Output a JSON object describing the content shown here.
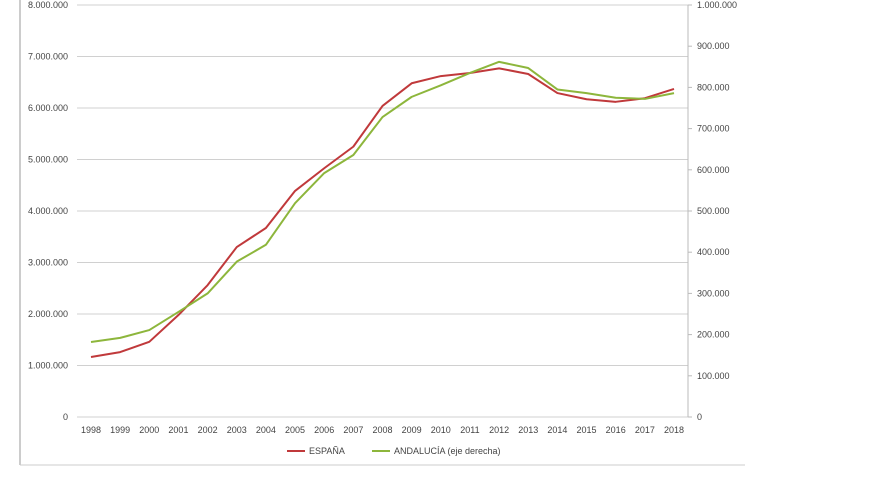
{
  "chart_data": {
    "type": "line",
    "title": "",
    "xlabel": "",
    "ylabel": "",
    "categories": [
      "1998",
      "1999",
      "2000",
      "2001",
      "2002",
      "2003",
      "2004",
      "2005",
      "2006",
      "2007",
      "2008",
      "2009",
      "2010",
      "2011",
      "2012",
      "2013",
      "2014",
      "2015",
      "2016",
      "2017",
      "2018"
    ],
    "y_left": {
      "min": 0,
      "max": 8000000,
      "ticks": [
        "0",
        "1.000.000",
        "2.000.000",
        "3.000.000",
        "4.000.000",
        "5.000.000",
        "6.000.000",
        "7.000.000",
        "8.000.000"
      ]
    },
    "y_right": {
      "min": 0,
      "max": 1000000,
      "ticks": [
        "0",
        "100.000",
        "200.000",
        "300.000",
        "400.000",
        "500.000",
        "600.000",
        "700.000",
        "800.000",
        "900.000",
        "1.000.000"
      ]
    },
    "grid": true,
    "legend_position": "bottom",
    "series": [
      {
        "name": "ESPAÑA",
        "axis": "left",
        "color": "#c0393b",
        "values": [
          1165000,
          1260000,
          1460000,
          1980000,
          2560000,
          3300000,
          3670000,
          4390000,
          4830000,
          5250000,
          6040000,
          6480000,
          6620000,
          6680000,
          6770000,
          6660000,
          6290000,
          6170000,
          6120000,
          6190000,
          6370000
        ]
      },
      {
        "name": "ANDALUCÍA (eje derecha)",
        "axis": "right",
        "color": "#8db63c",
        "values": [
          182000,
          192000,
          211000,
          255000,
          300000,
          377000,
          418000,
          519000,
          592000,
          636000,
          728000,
          777000,
          805000,
          835000,
          862000,
          847000,
          795000,
          786000,
          775000,
          772000,
          786000
        ]
      }
    ]
  }
}
